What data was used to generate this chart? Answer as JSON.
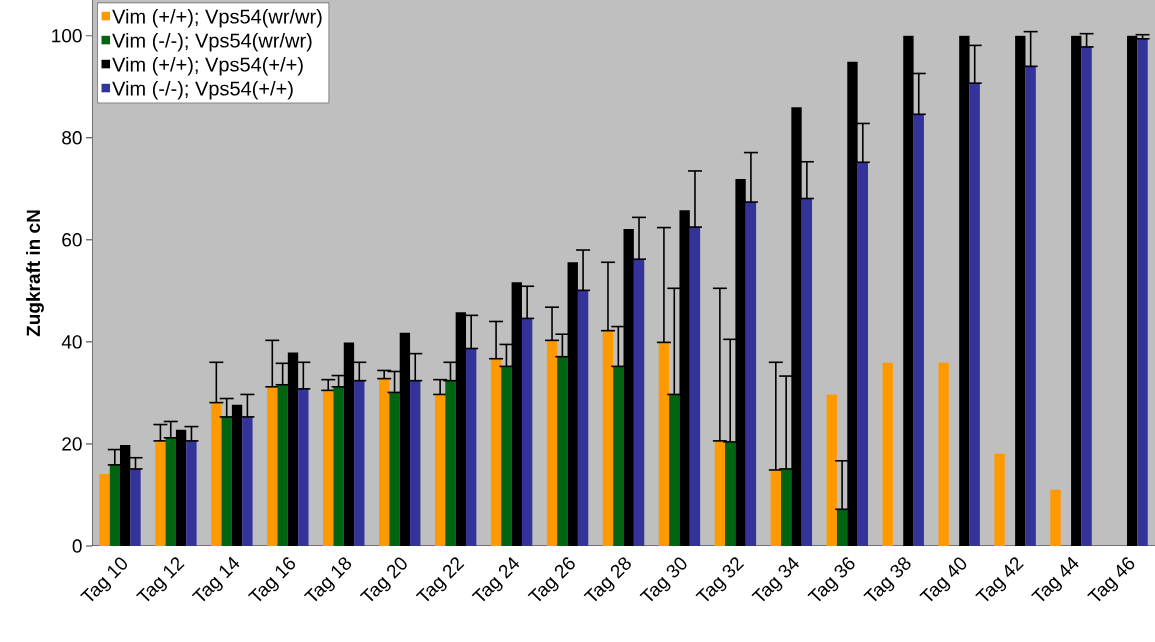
{
  "chart_data": {
    "type": "bar",
    "ylabel": "Zugkraft in cN",
    "categories": [
      "Tag 10",
      "Tag 12",
      "Tag 14",
      "Tag 16",
      "Tag 18",
      "Tag 20",
      "Tag 22",
      "Tag 24",
      "Tag 26",
      "Tag 28",
      "Tag 30",
      "Tag 32",
      "Tag 34",
      "Tag 36",
      "Tag 38",
      "Tag 40",
      "Tag 42",
      "Tag 44",
      "Tag 46"
    ],
    "series": [
      {
        "name": "Vim (+/+); Vps54(wr/wr)",
        "color": "#ff9900",
        "values": [
          14.1,
          20.6,
          28.1,
          31.2,
          30.5,
          32.8,
          29.7,
          36.7,
          40.3,
          42.2,
          39.9,
          20.6,
          14.9,
          29.7,
          35.9,
          35.9,
          18.1,
          11.0,
          null
        ],
        "errors": [
          null,
          [
            20.6,
            23.8
          ],
          [
            28.1,
            36.0
          ],
          [
            31.2,
            40.3
          ],
          [
            30.5,
            32.6
          ],
          [
            32.8,
            34.4
          ],
          [
            29.7,
            32.6
          ],
          [
            36.7,
            44.0
          ],
          [
            40.3,
            46.8
          ],
          [
            42.2,
            55.6
          ],
          [
            39.9,
            62.4
          ],
          [
            20.6,
            50.5
          ],
          [
            14.9,
            36.0
          ],
          null,
          null,
          null,
          null,
          null,
          null
        ]
      },
      {
        "name": "Vim (-/-); Vps54(wr/wr)",
        "color": "#006411",
        "values": [
          15.9,
          21.2,
          25.3,
          31.6,
          31.2,
          30.1,
          32.4,
          35.2,
          37.1,
          35.2,
          29.7,
          20.4,
          15.1,
          7.2,
          0,
          0,
          0,
          0,
          null
        ],
        "errors": [
          [
            15.9,
            18.9
          ],
          [
            21.2,
            24.4
          ],
          [
            25.3,
            28.9
          ],
          [
            31.6,
            35.8
          ],
          [
            31.2,
            33.4
          ],
          [
            30.1,
            34.2
          ],
          [
            32.4,
            36.0
          ],
          [
            35.2,
            39.5
          ],
          [
            37.1,
            41.5
          ],
          [
            35.2,
            43.0
          ],
          [
            29.7,
            50.5
          ],
          [
            20.4,
            40.5
          ],
          [
            15.1,
            33.3
          ],
          [
            7.2,
            16.7
          ],
          null,
          null,
          null,
          null,
          null
        ]
      },
      {
        "name": "Vim (+/+); Vps54(+/+)",
        "color": "#000000",
        "values": [
          19.8,
          22.8,
          27.7,
          37.9,
          39.9,
          41.8,
          45.8,
          51.7,
          55.6,
          62.1,
          65.8,
          71.9,
          86.0,
          94.9,
          100,
          100,
          100,
          100,
          100
        ]
      },
      {
        "name": "Vim (-/-); Vps54(+/+)",
        "color": "#333399",
        "values": [
          15.1,
          20.6,
          25.3,
          30.8,
          32.4,
          32.4,
          38.7,
          44.6,
          50.1,
          56.2,
          62.5,
          67.4,
          68.1,
          75.2,
          84.6,
          90.7,
          94.0,
          97.8,
          99.4
        ],
        "errors": [
          [
            15.1,
            17.3
          ],
          [
            20.6,
            23.4
          ],
          [
            25.3,
            29.7
          ],
          [
            30.8,
            36.0
          ],
          [
            32.4,
            36.0
          ],
          [
            32.4,
            37.7
          ],
          [
            38.7,
            45.2
          ],
          [
            44.6,
            50.9
          ],
          [
            50.1,
            58.0
          ],
          [
            56.2,
            64.4
          ],
          [
            62.5,
            73.5
          ],
          [
            67.4,
            77.1
          ],
          [
            68.1,
            75.3
          ],
          [
            75.2,
            82.8
          ],
          [
            84.6,
            92.6
          ],
          [
            90.7,
            98.1
          ],
          [
            94.0,
            100.8
          ],
          [
            97.8,
            100.4
          ],
          [
            99.4,
            100.2
          ]
        ]
      }
    ],
    "ylim": [
      0,
      107
    ],
    "yticks": [
      0,
      20,
      40,
      60,
      80,
      100
    ],
    "legend": "top left"
  }
}
